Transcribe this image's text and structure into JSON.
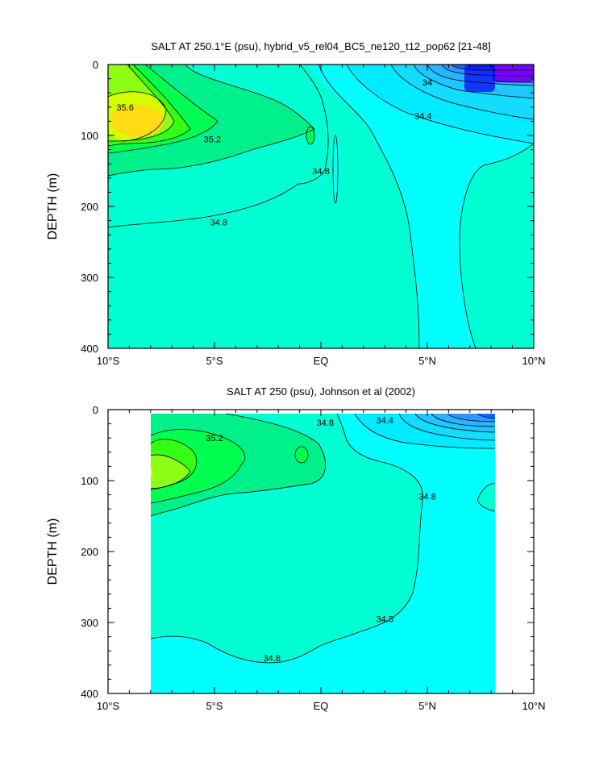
{
  "chart_data": [
    {
      "type": "contour",
      "title": "SALT AT 250.1°E (psu), hybrid_v5_rel04_BC5_ne120_t12_pop62 [21-48]",
      "ylabel": "DEPTH (m)",
      "x_tick_labels": [
        "10°S",
        "5°S",
        "EQ",
        "5°N",
        "10°N"
      ],
      "y_tick_labels": [
        "0",
        "100",
        "200",
        "300",
        "400"
      ],
      "xlim": [
        -10,
        10
      ],
      "ylim": [
        400,
        0
      ],
      "contour_labels": [
        {
          "text": "35.6",
          "x": -9.2,
          "y": 60
        },
        {
          "text": "35.2",
          "x": -5.1,
          "y": 105
        },
        {
          "text": "34.8",
          "x": -4.8,
          "y": 222
        },
        {
          "text": "34.8",
          "x": 0.0,
          "y": 150
        },
        {
          "text": "34.4",
          "x": 4.8,
          "y": 72
        },
        {
          "text": "34",
          "x": 5.0,
          "y": 25
        }
      ]
    },
    {
      "type": "contour",
      "title": "SALT AT 250 (psu), Johnson et al (2002)",
      "ylabel": "DEPTH (m)",
      "x_tick_labels": [
        "10°S",
        "5°S",
        "EQ",
        "5°N",
        "10°N"
      ],
      "y_tick_labels": [
        "0",
        "100",
        "200",
        "300",
        "400"
      ],
      "xlim": [
        -10,
        10
      ],
      "ylim": [
        400,
        0
      ],
      "contour_labels": [
        {
          "text": "35.2",
          "x": -5.0,
          "y": 40
        },
        {
          "text": "34.8",
          "x": 0.2,
          "y": 18
        },
        {
          "text": "34.4",
          "x": 3.0,
          "y": 15
        },
        {
          "text": "34.8",
          "x": 5.0,
          "y": 122
        },
        {
          "text": "34.8",
          "x": 3.0,
          "y": 295
        },
        {
          "text": "34.8",
          "x": -2.3,
          "y": 350
        }
      ]
    }
  ]
}
